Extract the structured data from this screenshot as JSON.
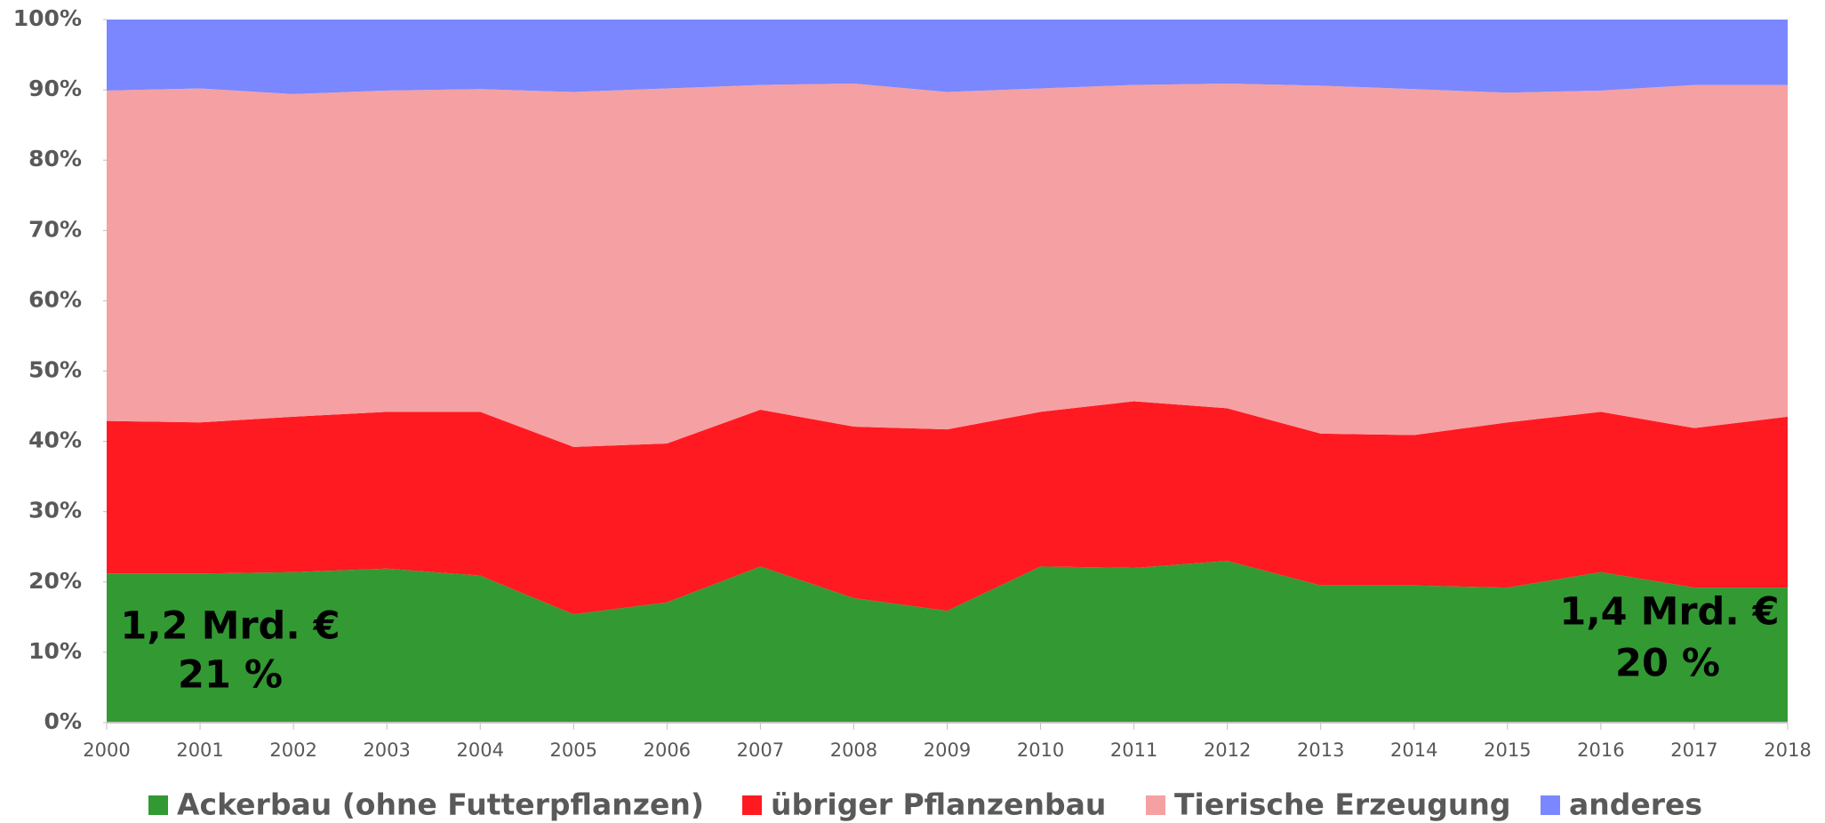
{
  "chart_data": {
    "type": "stacked-area-100",
    "x": [
      2000,
      2001,
      2002,
      2003,
      2004,
      2005,
      2006,
      2007,
      2008,
      2009,
      2010,
      2011,
      2012,
      2013,
      2014,
      2015,
      2016,
      2017,
      2018
    ],
    "series": [
      {
        "name": "Ackerbau (ohne Futterpflanzen)",
        "color": "#339933",
        "values": [
          21.2,
          21.2,
          21.4,
          21.9,
          20.9,
          15.4,
          17.1,
          22.2,
          17.7,
          15.9,
          22.2,
          22.0,
          23.0,
          19.5,
          19.5,
          19.2,
          21.4,
          19.2,
          19.2
        ]
      },
      {
        "name": "übriger Pflanzenbau",
        "color": "#ff1a22",
        "values": [
          21.7,
          21.5,
          22.1,
          22.3,
          23.3,
          23.8,
          22.6,
          22.3,
          24.4,
          25.8,
          22.0,
          23.7,
          21.7,
          21.6,
          21.4,
          23.5,
          22.8,
          22.7,
          24.3
        ]
      },
      {
        "name": "Tierische Erzeugung",
        "color": "#f5a0a2",
        "values": [
          47.0,
          47.5,
          45.9,
          45.7,
          45.9,
          50.5,
          50.5,
          46.2,
          48.8,
          48.0,
          46.0,
          45.0,
          46.2,
          49.5,
          49.2,
          46.9,
          45.7,
          48.8,
          47.2
        ]
      },
      {
        "name": "anderes",
        "color": "#7b87ff",
        "values": [
          10.1,
          9.8,
          10.6,
          10.1,
          9.9,
          10.3,
          9.8,
          9.3,
          9.1,
          10.3,
          9.8,
          9.3,
          9.1,
          9.4,
          9.9,
          10.4,
          10.1,
          9.3,
          9.3
        ]
      }
    ],
    "xlim": [
      2000,
      2018
    ],
    "xticks": [
      2000,
      2001,
      2002,
      2003,
      2004,
      2005,
      2006,
      2007,
      2008,
      2009,
      2010,
      2011,
      2012,
      2013,
      2014,
      2015,
      2016,
      2017,
      2018
    ],
    "ylim": [
      0,
      100
    ],
    "yticks": [
      {
        "value": 0,
        "label": "0%"
      },
      {
        "value": 10,
        "label": "10%"
      },
      {
        "value": 20,
        "label": "20%"
      },
      {
        "value": 30,
        "label": "30%"
      },
      {
        "value": 40,
        "label": "40%"
      },
      {
        "value": 50,
        "label": "50%"
      },
      {
        "value": 60,
        "label": "60%"
      },
      {
        "value": 70,
        "label": "70%"
      },
      {
        "value": 80,
        "label": "80%"
      },
      {
        "value": 90,
        "label": "90%"
      },
      {
        "value": 100,
        "label": "100%"
      }
    ],
    "annotations": [
      "1,2 Mrd. €",
      "21 %",
      "1,4 Mrd. €",
      "20 %"
    ],
    "legend": "bottom"
  }
}
